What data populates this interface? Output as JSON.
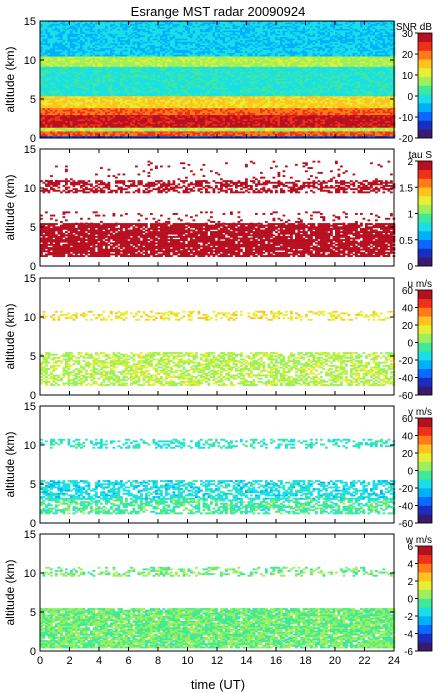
{
  "figure": {
    "title": "Esrange MST radar 20090924",
    "xlabel": "time (UT)"
  },
  "colorscale": [
    "#3a1a6e",
    "#1a2fbf",
    "#0a68ff",
    "#00b0ff",
    "#18e0e6",
    "#40e89a",
    "#9cf05a",
    "#e6f032",
    "#ffc21e",
    "#ff7a18",
    "#f03018",
    "#b81020"
  ],
  "chart_data": [
    {
      "type": "heatmap",
      "name": "snr",
      "ylabel": "altitude (km)",
      "xlim": [
        0,
        24
      ],
      "ylim": [
        0,
        15
      ],
      "x_ticks": [
        0,
        2,
        4,
        6,
        8,
        10,
        12,
        14,
        16,
        18,
        20,
        22,
        24
      ],
      "y_ticks": [
        0,
        5,
        10,
        15
      ],
      "colorbar": {
        "label": "SNR dB",
        "range": [
          -20,
          30
        ],
        "ticks": [
          -20,
          -10,
          0,
          10,
          20,
          30
        ]
      },
      "layers": [
        {
          "alt": [
            0.0,
            0.4
          ],
          "value": -12,
          "coverage": 1.0
        },
        {
          "alt": [
            0.4,
            0.9
          ],
          "value": 22,
          "coverage": 1.0
        },
        {
          "alt": [
            0.9,
            1.5
          ],
          "value": 8,
          "coverage": 1.0
        },
        {
          "alt": [
            1.5,
            3.0
          ],
          "value": 27,
          "coverage": 1.0
        },
        {
          "alt": [
            3.0,
            4.0
          ],
          "value": 21,
          "coverage": 1.0
        },
        {
          "alt": [
            4.0,
            5.5
          ],
          "value": 14,
          "coverage": 1.0
        },
        {
          "alt": [
            5.5,
            9.3
          ],
          "value": 0,
          "coverage": 1.0
        },
        {
          "alt": [
            9.3,
            10.6
          ],
          "value": 8,
          "coverage": 1.0
        },
        {
          "alt": [
            10.6,
            15.0
          ],
          "value": -3,
          "coverage": 1.0
        }
      ]
    },
    {
      "type": "heatmap",
      "name": "tau",
      "ylabel": "altitude (km)",
      "xlim": [
        0,
        24
      ],
      "ylim": [
        0,
        15
      ],
      "x_ticks": [
        0,
        2,
        4,
        6,
        8,
        10,
        12,
        14,
        16,
        18,
        20,
        22,
        24
      ],
      "y_ticks": [
        0,
        5,
        10,
        15
      ],
      "colorbar": {
        "label": "tau S",
        "range": [
          0,
          2
        ],
        "ticks": [
          0,
          0.5,
          1,
          1.5,
          2
        ]
      },
      "layers": [
        {
          "alt": [
            1.2,
            5.5
          ],
          "value": 1.98,
          "coverage": 0.85
        },
        {
          "alt": [
            5.5,
            7.0
          ],
          "value": 1.98,
          "coverage": 0.12
        },
        {
          "alt": [
            9.5,
            11.0
          ],
          "value": 1.98,
          "coverage": 0.55
        },
        {
          "alt": [
            11.0,
            13.5
          ],
          "value": 1.98,
          "coverage": 0.05
        }
      ]
    },
    {
      "type": "heatmap",
      "name": "u",
      "ylabel": "altitude (km)",
      "xlim": [
        0,
        24
      ],
      "ylim": [
        0,
        15
      ],
      "x_ticks": [
        0,
        2,
        4,
        6,
        8,
        10,
        12,
        14,
        16,
        18,
        20,
        22,
        24
      ],
      "y_ticks": [
        0,
        5,
        10,
        15
      ],
      "colorbar": {
        "label": "u m/s",
        "range": [
          -60,
          60
        ],
        "ticks": [
          -60,
          -40,
          -20,
          0,
          20,
          40,
          60
        ]
      },
      "layers": [
        {
          "alt": [
            1.3,
            5.5
          ],
          "value": 8,
          "coverage": 0.6
        },
        {
          "alt": [
            9.7,
            10.8
          ],
          "value": 18,
          "coverage": 0.35
        }
      ]
    },
    {
      "type": "heatmap",
      "name": "v",
      "ylabel": "altitude (km)",
      "xlim": [
        0,
        24
      ],
      "ylim": [
        0,
        15
      ],
      "x_ticks": [
        0,
        2,
        4,
        6,
        8,
        10,
        12,
        14,
        16,
        18,
        20,
        22,
        24
      ],
      "y_ticks": [
        0,
        5,
        10,
        15
      ],
      "colorbar": {
        "label": "v m/s",
        "range": [
          -60,
          60
        ],
        "ticks": [
          -60,
          -40,
          -20,
          0,
          20,
          40,
          60
        ]
      },
      "layers": [
        {
          "alt": [
            1.3,
            3.2
          ],
          "value": -5,
          "coverage": 0.6
        },
        {
          "alt": [
            3.2,
            5.5
          ],
          "value": -15,
          "coverage": 0.6
        },
        {
          "alt": [
            9.7,
            10.8
          ],
          "value": -12,
          "coverage": 0.35
        }
      ]
    },
    {
      "type": "heatmap",
      "name": "w",
      "ylabel": "altitude (km)",
      "xlim": [
        0,
        24
      ],
      "ylim": [
        0,
        15
      ],
      "x_ticks": [
        0,
        2,
        4,
        6,
        8,
        10,
        12,
        14,
        16,
        18,
        20,
        22,
        24
      ],
      "y_ticks": [
        0,
        5,
        10,
        15
      ],
      "colorbar": {
        "label": "w m/s",
        "range": [
          -6,
          6
        ],
        "ticks": [
          -6,
          -4,
          -2,
          0,
          2,
          4,
          6
        ]
      },
      "layers": [
        {
          "alt": [
            0.5,
            5.5
          ],
          "value": 0,
          "coverage": 0.9
        },
        {
          "alt": [
            9.7,
            10.8
          ],
          "value": 0,
          "coverage": 0.35
        }
      ]
    }
  ]
}
